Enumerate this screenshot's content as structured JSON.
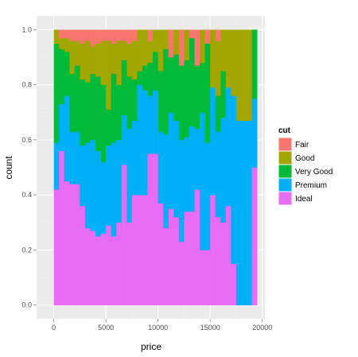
{
  "chart_data": {
    "type": "bar",
    "subtype": "stacked-fill-histogram",
    "xlabel": "price",
    "ylabel": "count",
    "xlim": [
      -1650,
      20250
    ],
    "ylim": [
      -0.05,
      1.05
    ],
    "x_ticks": [
      0,
      5000,
      10000,
      15000,
      20000
    ],
    "x_tick_labels": [
      "0",
      "5000",
      "10000",
      "15000",
      "20000"
    ],
    "y_ticks": [
      0.0,
      0.2,
      0.4,
      0.6,
      0.8,
      1.0
    ],
    "y_tick_labels": [
      "0.0",
      "0.2",
      "0.4",
      "0.6",
      "0.8",
      "1.0"
    ],
    "legend_title": "cut",
    "legend_position": "right",
    "grid": true,
    "panel_background": "#ebebeb",
    "bin_start": 0,
    "bin_width": 500,
    "series": [
      {
        "name": "Fair",
        "color": "#F8766D",
        "values": [
          0.0,
          0.03,
          0.03,
          0.04,
          0.04,
          0.05,
          0.04,
          0.06,
          0.05,
          0.04,
          0.04,
          0.05,
          0.04,
          0.04,
          0.05,
          0.04,
          0.0,
          0.0,
          0.04,
          0.0,
          0.0,
          0.0,
          0.1,
          0.0,
          0.13,
          0.0,
          0.03,
          0.13,
          0.0,
          0.05,
          0.0,
          0.04,
          0.0,
          0.0,
          0.0,
          0.0,
          0.0,
          0.0,
          0.0
        ]
      },
      {
        "name": "Good",
        "color": "#A3A500",
        "values": [
          0.05,
          0.04,
          0.05,
          0.12,
          0.09,
          0.13,
          0.15,
          0.1,
          0.12,
          0.16,
          0.25,
          0.11,
          0.16,
          0.07,
          0.12,
          0.14,
          0.15,
          0.13,
          0.08,
          0.08,
          0.15,
          0.07,
          0.0,
          0.09,
          0.0,
          0.11,
          0.0,
          0.0,
          0.12,
          0.0,
          0.21,
          0.2,
          0.15,
          0.21,
          0.24,
          0.33,
          0.33,
          0.33,
          0.0
        ]
      },
      {
        "name": "Very Good",
        "color": "#00BA38",
        "values": [
          0.36,
          0.2,
          0.16,
          0.21,
          0.24,
          0.24,
          0.22,
          0.24,
          0.27,
          0.28,
          0.13,
          0.25,
          0.2,
          0.2,
          0.19,
          0.15,
          0.05,
          0.09,
          0.12,
          0.14,
          0.22,
          0.31,
          0.2,
          0.24,
          0.27,
          0.28,
          0.32,
          0.23,
          0.18,
          0.36,
          0.0,
          0.13,
          0.17,
          0.0,
          0.0,
          0.0,
          0.0,
          0.0,
          0.25
        ]
      },
      {
        "name": "Premium",
        "color": "#00B0F6",
        "values": [
          0.17,
          0.17,
          0.31,
          0.19,
          0.19,
          0.22,
          0.31,
          0.33,
          0.31,
          0.26,
          0.29,
          0.34,
          0.3,
          0.18,
          0.34,
          0.27,
          0.4,
          0.38,
          0.21,
          0.23,
          0.26,
          0.34,
          0.35,
          0.35,
          0.37,
          0.27,
          0.31,
          0.22,
          0.5,
          0.39,
          0.39,
          0.31,
          0.38,
          0.43,
          0.61,
          0.67,
          0.67,
          0.67,
          0.25
        ]
      },
      {
        "name": "Ideal",
        "color": "#E76BF3",
        "values": [
          0.42,
          0.56,
          0.45,
          0.44,
          0.44,
          0.36,
          0.28,
          0.27,
          0.25,
          0.26,
          0.29,
          0.25,
          0.3,
          0.51,
          0.3,
          0.4,
          0.4,
          0.4,
          0.55,
          0.55,
          0.37,
          0.28,
          0.35,
          0.32,
          0.23,
          0.34,
          0.34,
          0.42,
          0.2,
          0.2,
          0.4,
          0.32,
          0.3,
          0.36,
          0.15,
          0.0,
          0.0,
          0.0,
          0.5
        ]
      }
    ]
  }
}
